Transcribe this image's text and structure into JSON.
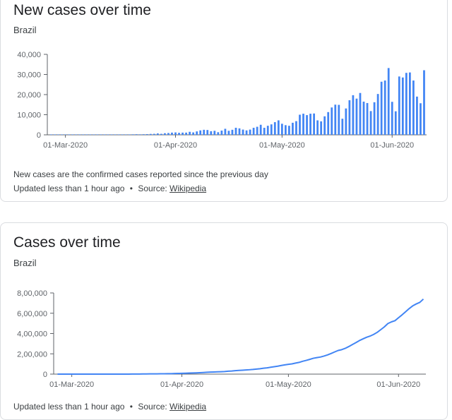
{
  "cards": [
    {
      "title": "New cases over time",
      "subtitle": "Brazil",
      "note": "New cases are the confirmed cases reported since the previous day",
      "updated": "Updated less than 1 hour ago",
      "separator": "•",
      "source_label": "Source:",
      "source_link": "Wikipedia"
    },
    {
      "title": "Cases over time",
      "subtitle": "Brazil",
      "updated": "Updated less than 1 hour ago",
      "separator": "•",
      "source_label": "Source:",
      "source_link": "Wikipedia"
    }
  ],
  "colors": {
    "series": "#4285f4",
    "axis": "#5f6368",
    "text": "#202124"
  },
  "chart_data": [
    {
      "type": "bar",
      "series_color": "#4285f4",
      "ylim": [
        0,
        40000
      ],
      "yticks": [
        0,
        10000,
        20000,
        30000,
        40000
      ],
      "ytick_labels": [
        "0",
        "10,000",
        "20,000",
        "30,000",
        "40,000"
      ],
      "xtick_labels": [
        "01-Mar-2020",
        "01-Apr-2020",
        "01-May-2020",
        "01-Jun-2020"
      ],
      "xtick_days": [
        0,
        31,
        61,
        92
      ],
      "start": "2020-02-26",
      "values": [
        0,
        0,
        0,
        0,
        0,
        0,
        0,
        0,
        0,
        0,
        5,
        8,
        0,
        10,
        0,
        16,
        40,
        50,
        100,
        120,
        150,
        200,
        200,
        250,
        300,
        250,
        300,
        350,
        450,
        500,
        700,
        500,
        800,
        900,
        1100,
        1200,
        1000,
        1100,
        1100,
        1500,
        1200,
        1700,
        2200,
        2500,
        2400,
        1800,
        2000,
        1300,
        2100,
        3000,
        2000,
        2500,
        3500,
        3200,
        2600,
        2200,
        2600,
        3500,
        4000,
        5000,
        3500,
        4500,
        5200,
        6300,
        7200,
        5500,
        4800,
        4500,
        6000,
        6800,
        10000,
        10500,
        9800,
        10500,
        10600,
        7200,
        6700,
        9200,
        11300,
        13600,
        15000,
        14900,
        8000,
        13100,
        17200,
        19700,
        18000,
        20800,
        16500,
        15800,
        11800,
        16200,
        20300,
        26400,
        27000,
        33200,
        16400,
        11700,
        29000,
        28500,
        30800,
        31000,
        27000,
        19000,
        15700,
        32100
      ]
    },
    {
      "type": "line",
      "series_color": "#4285f4",
      "ylim": [
        0,
        800000
      ],
      "yticks": [
        0,
        200000,
        400000,
        600000,
        800000
      ],
      "ytick_labels": [
        "0",
        "2,00,000",
        "4,00,000",
        "6,00,000",
        "8,00,000"
      ],
      "xtick_labels": [
        "01-Mar-2020",
        "01-Apr-2020",
        "01-May-2020",
        "01-Jun-2020"
      ],
      "xtick_days": [
        0,
        31,
        61,
        92
      ],
      "start": "2020-02-26",
      "values": [
        1,
        1,
        1,
        2,
        2,
        2,
        2,
        3,
        3,
        13,
        13,
        25,
        25,
        34,
        52,
        77,
        98,
        176,
        234,
        291,
        428,
        621,
        904,
        1128,
        1546,
        1924,
        2201,
        2433,
        2915,
        3417,
        3904,
        4256,
        4579,
        5717,
        6836,
        7910,
        9056,
        10278,
        11130,
        12056,
        13717,
        15927,
        17857,
        19638,
        20727,
        22169,
        23430,
        25262,
        28320,
        30425,
        33682,
        36599,
        38654,
        40581,
        43079,
        45757,
        49492,
        52995,
        58509,
        61888,
        67446,
        73235,
        78162,
        85380,
        91589,
        96559,
        101147,
        108620,
        115455,
        126611,
        135106,
        145328,
        155939,
        162699,
        168331,
        177589,
        188974,
        202918,
        218223,
        233142,
        241080,
        254220,
        271628,
        291579,
        310087,
        330890,
        347398,
        363211,
        374898,
        391222,
        411821,
        438238,
        465166,
        498440,
        514849,
        526447,
        555383,
        584016,
        614941,
        645771,
        672846,
        691758,
        707412,
        739503
      ]
    }
  ]
}
